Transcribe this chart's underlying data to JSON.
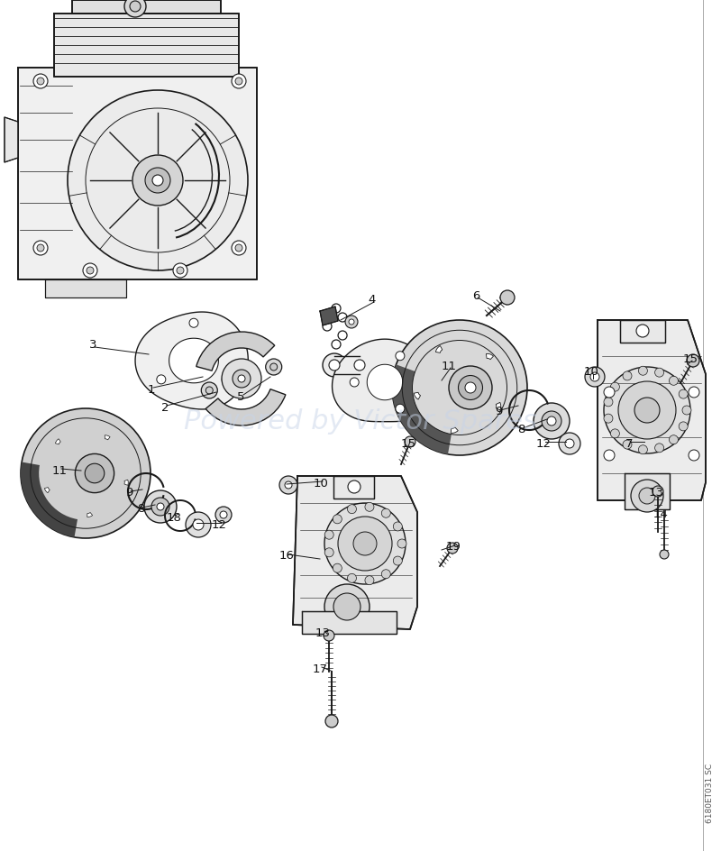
{
  "background_color": "#ffffff",
  "watermark_text": "Powered by Victor Spares",
  "watermark_color": "#c8d4e8",
  "watermark_alpha": 0.5,
  "diagram_code": "6180ET031 SC",
  "fig_width": 8.0,
  "fig_height": 9.44,
  "line_color": "#1a1a1a",
  "label_fontsize": 9.5,
  "labels_top": [
    [
      "1",
      170,
      430
    ],
    [
      "2",
      185,
      450
    ],
    [
      "3",
      105,
      385
    ],
    [
      "4",
      415,
      335
    ],
    [
      "5",
      270,
      438
    ],
    [
      "6",
      530,
      330
    ],
    [
      "7",
      700,
      490
    ],
    [
      "8",
      580,
      475
    ],
    [
      "9",
      555,
      455
    ],
    [
      "10",
      658,
      415
    ],
    [
      "11",
      500,
      408
    ],
    [
      "12",
      605,
      490
    ],
    [
      "13",
      730,
      545
    ],
    [
      "14",
      735,
      568
    ],
    [
      "15",
      768,
      400
    ]
  ],
  "labels_bottom": [
    [
      "11",
      68,
      520
    ],
    [
      "9",
      145,
      545
    ],
    [
      "8",
      158,
      563
    ],
    [
      "18",
      195,
      572
    ],
    [
      "12",
      245,
      580
    ],
    [
      "10",
      358,
      534
    ],
    [
      "15",
      455,
      490
    ],
    [
      "16",
      320,
      615
    ],
    [
      "19",
      505,
      605
    ],
    [
      "13",
      360,
      700
    ],
    [
      "17",
      357,
      740
    ]
  ]
}
